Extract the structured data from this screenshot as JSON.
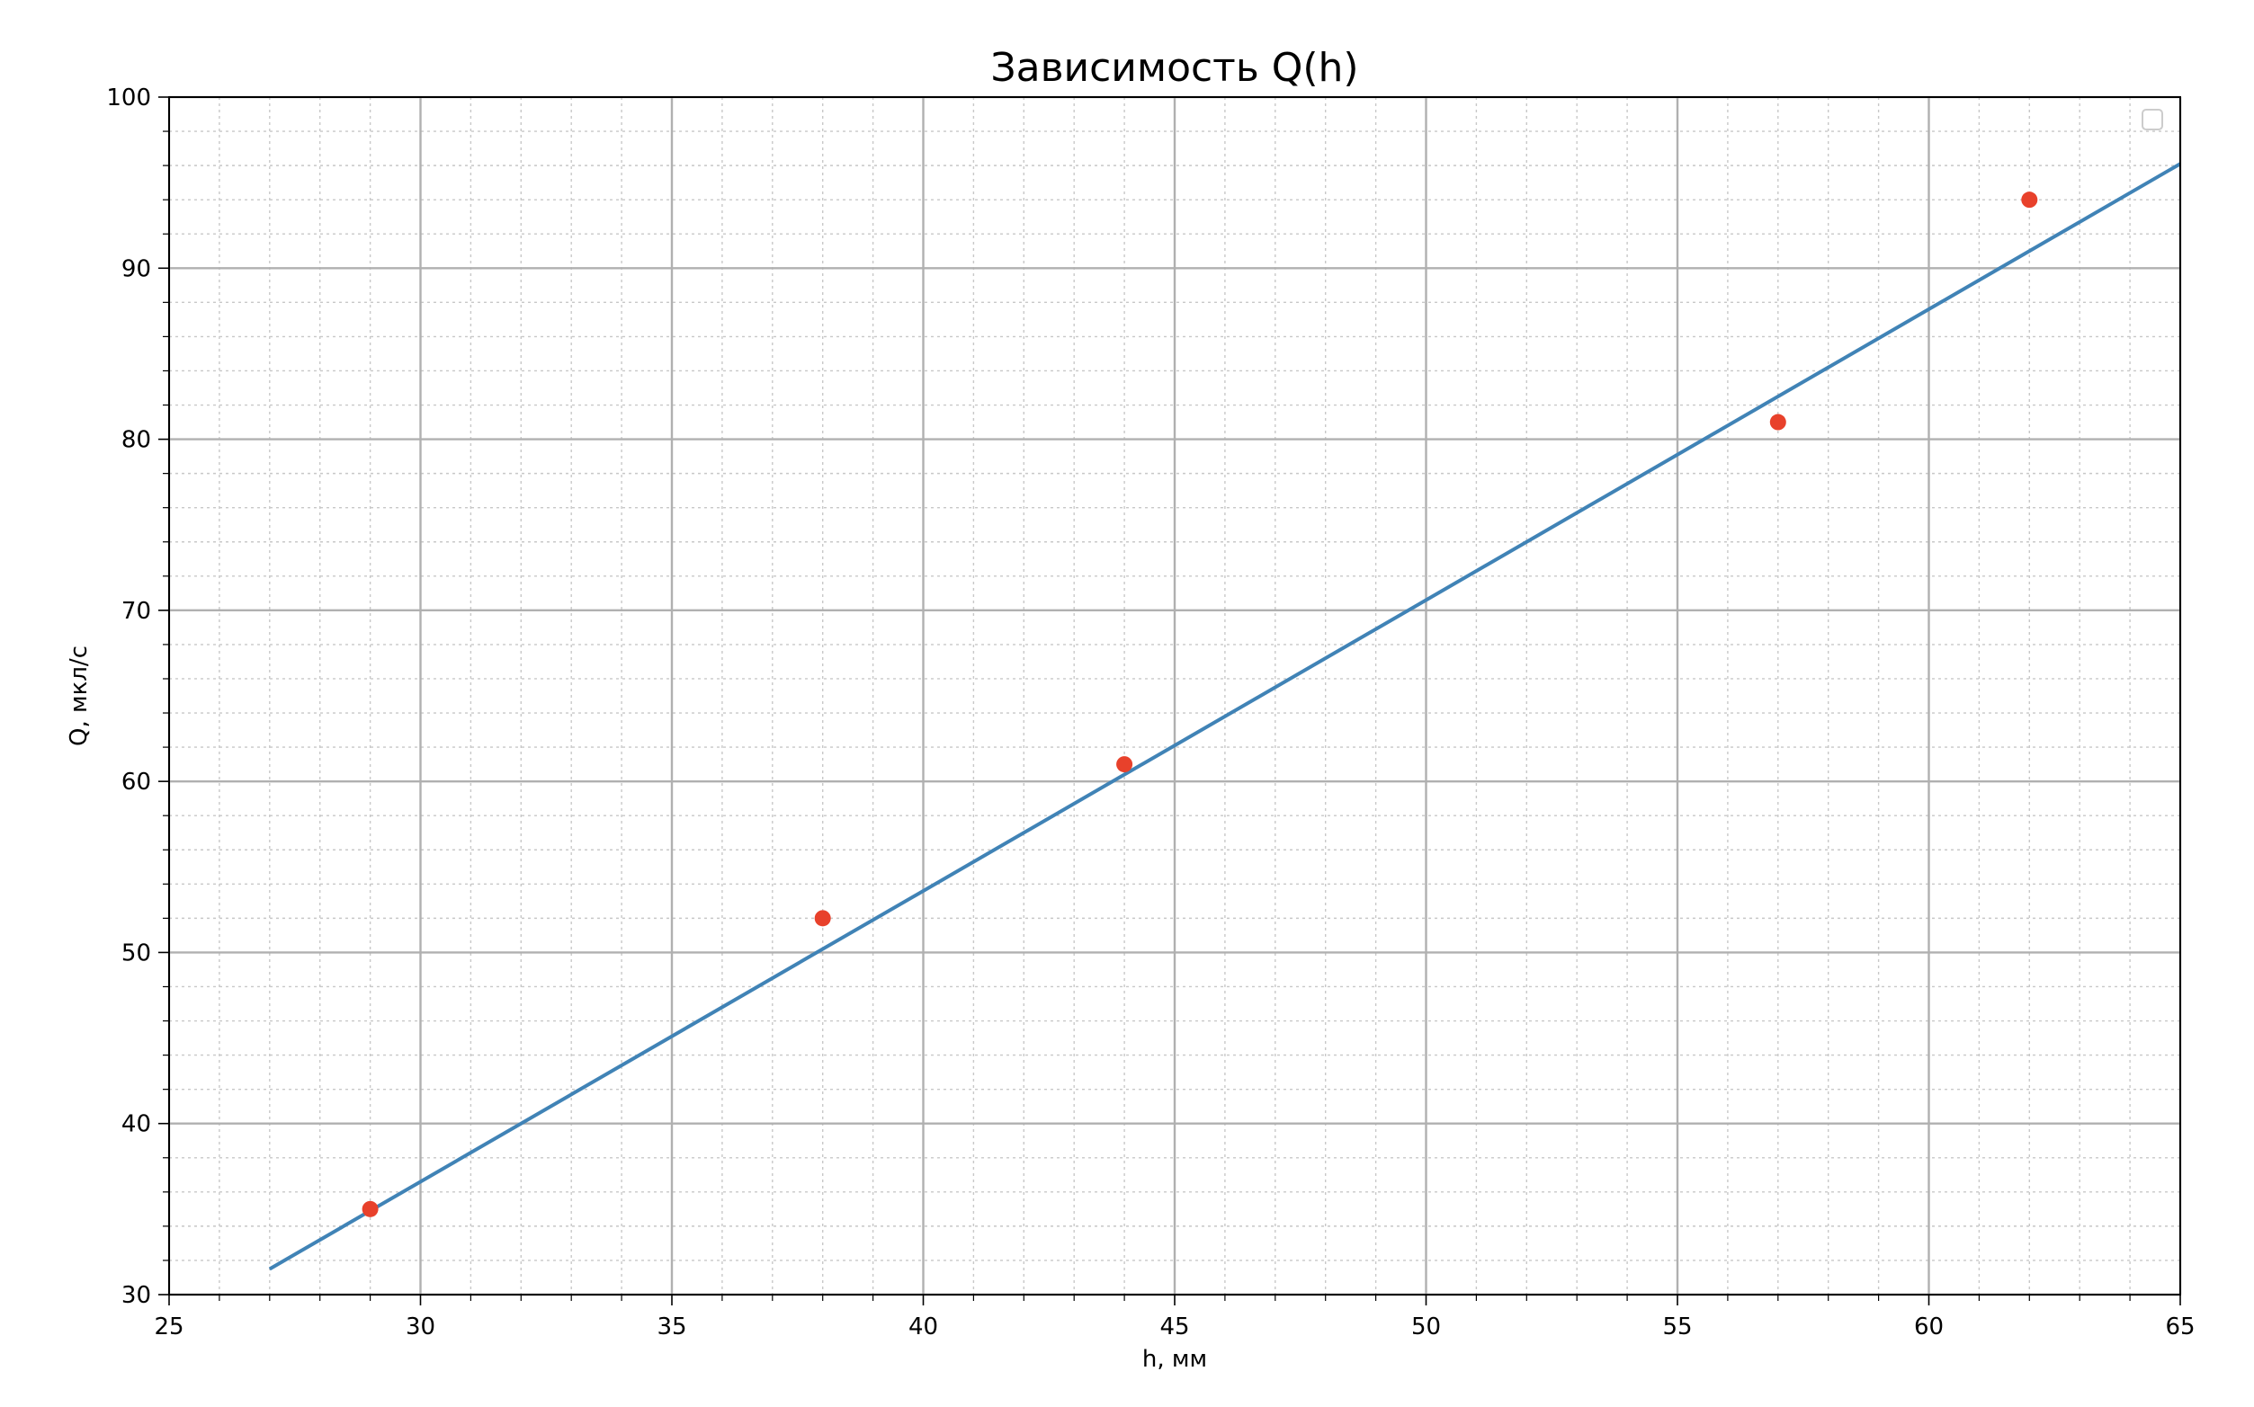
{
  "chart_data": {
    "type": "scatter",
    "title": "Зависимость Q(h)",
    "xlabel": "h, мм",
    "ylabel": "Q, мкл/с",
    "xlim": [
      25,
      65
    ],
    "ylim": [
      30,
      100
    ],
    "xticks": [
      25,
      30,
      35,
      40,
      45,
      50,
      55,
      60,
      65
    ],
    "yticks": [
      30,
      40,
      50,
      60,
      70,
      80,
      90,
      100
    ],
    "x_minor_step": 1,
    "y_minor_step": 2,
    "grid": true,
    "legend": {
      "placement": "top-right",
      "entries": []
    },
    "colors": {
      "points": "#e8412b",
      "line": "#4083b6",
      "grid": "#b0b0b0"
    },
    "series": [
      {
        "type": "scatter",
        "x": [
          29,
          38,
          44,
          57,
          62
        ],
        "y": [
          35,
          52,
          61,
          81,
          94
        ]
      },
      {
        "type": "line",
        "x": [
          27,
          65
        ],
        "y": [
          31.5,
          96.1
        ]
      }
    ]
  }
}
